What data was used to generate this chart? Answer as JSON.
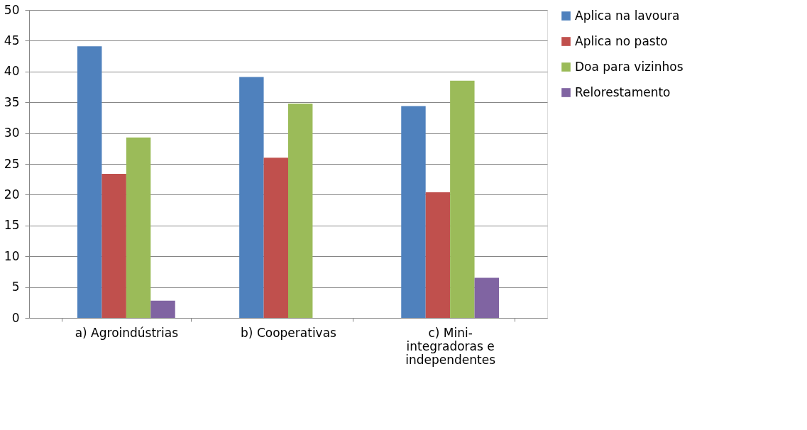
{
  "chart_data": {
    "type": "bar",
    "categories": [
      "a) Agroindústrias",
      "b) Cooperativas",
      "c) Mini-integradoras e independentes"
    ],
    "series": [
      {
        "name": "Aplica na lavoura",
        "color": "#4f81bd",
        "values": [
          44.1,
          39.1,
          34.4
        ]
      },
      {
        "name": "Aplica no pasto",
        "color": "#c0504d",
        "values": [
          23.4,
          26.0,
          20.4
        ]
      },
      {
        "name": "Doa para vizinhos",
        "color": "#9bbb59",
        "values": [
          29.3,
          34.8,
          38.5
        ]
      },
      {
        "name": "Relorestamento",
        "color": "#8064a2",
        "values": [
          2.8,
          0,
          6.5
        ]
      }
    ],
    "ylim": [
      0,
      50
    ],
    "yticks": [
      0,
      5,
      10,
      15,
      20,
      25,
      30,
      35,
      40,
      45,
      50
    ],
    "grid": "y",
    "legend": "right"
  }
}
